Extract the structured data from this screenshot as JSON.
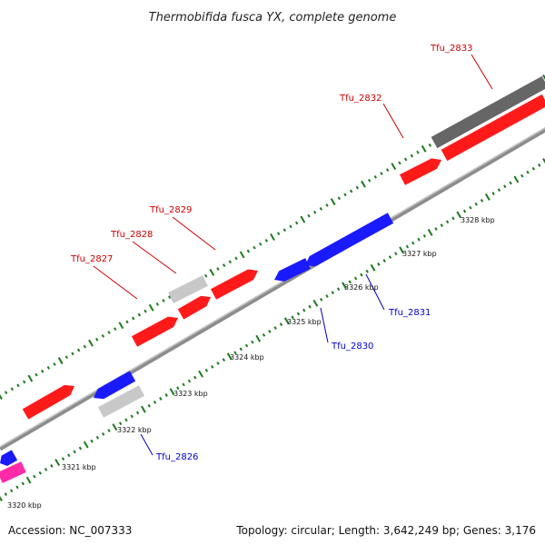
{
  "title": "Thermobifida fusca YX, complete genome",
  "accession": "Accession: NC_007333",
  "summary": "Topology: circular; Length: 3,642,249 bp; Genes: 3,176",
  "colors": {
    "forward_cds": "#ff1a1a",
    "reverse_cds": "#1a1aff",
    "pseudo": "#c8c8c8",
    "dark_feature": "#666666",
    "magenta_feature": "#ff2aa8",
    "backbone": "#999999",
    "tick": "#1a7a1a",
    "forward_label": "#cc0000",
    "reverse_label": "#0000cc"
  },
  "scale_labels": [
    "3320 kbp",
    "3321 kbp",
    "3322 kbp",
    "3323 kbp",
    "3324 kbp",
    "3325 kbp",
    "3326 kbp",
    "3327 kbp",
    "3328 kbp"
  ],
  "gene_labels": [
    {
      "text": "Tfu_2826",
      "strand": "reverse"
    },
    {
      "text": "Tfu_2827",
      "strand": "forward"
    },
    {
      "text": "Tfu_2828",
      "strand": "forward"
    },
    {
      "text": "Tfu_2829",
      "strand": "forward"
    },
    {
      "text": "Tfu_2830",
      "strand": "reverse"
    },
    {
      "text": "Tfu_2831",
      "strand": "reverse"
    },
    {
      "text": "Tfu_2832",
      "strand": "forward"
    },
    {
      "text": "Tfu_2833",
      "strand": "forward"
    }
  ]
}
